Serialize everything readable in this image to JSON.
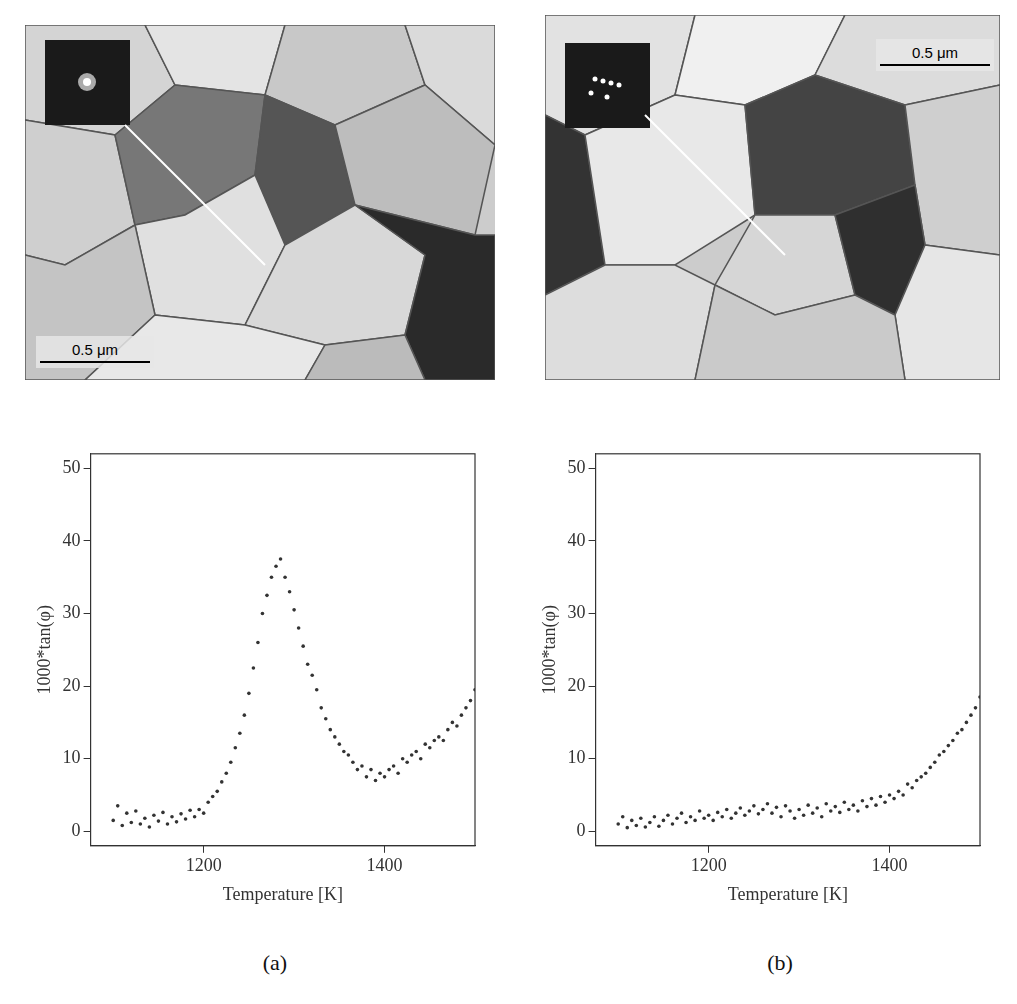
{
  "chart_data": [
    {
      "type": "scatter",
      "x_label": "Temperature [K]",
      "y_label": "1000*tan(φ)",
      "xlim": [
        1075,
        1500
      ],
      "xticks": [
        1200,
        1400
      ],
      "ylim": [
        -2,
        52
      ],
      "yticks": [
        0,
        10,
        20,
        30,
        40,
        50
      ],
      "grid": false,
      "color": "#333333",
      "marker": "circle",
      "x": [
        1100,
        1105,
        1110,
        1115,
        1120,
        1125,
        1130,
        1135,
        1140,
        1145,
        1150,
        1155,
        1160,
        1165,
        1170,
        1175,
        1180,
        1185,
        1190,
        1195,
        1200,
        1205,
        1210,
        1215,
        1220,
        1225,
        1230,
        1235,
        1240,
        1245,
        1250,
        1255,
        1260,
        1265,
        1270,
        1275,
        1280,
        1285,
        1290,
        1295,
        1300,
        1305,
        1310,
        1315,
        1320,
        1325,
        1330,
        1335,
        1340,
        1345,
        1350,
        1355,
        1360,
        1365,
        1370,
        1375,
        1380,
        1385,
        1390,
        1395,
        1400,
        1405,
        1410,
        1415,
        1420,
        1425,
        1430,
        1435,
        1440,
        1445,
        1450,
        1455,
        1460,
        1465,
        1470,
        1475,
        1480,
        1485,
        1490,
        1495,
        1500
      ],
      "values": [
        1.5,
        3.5,
        0.8,
        2.5,
        1.2,
        2.8,
        1.0,
        1.8,
        0.6,
        2.2,
        1.4,
        2.6,
        1.0,
        2.0,
        1.3,
        2.4,
        1.7,
        2.9,
        2.0,
        3.0,
        2.5,
        4.0,
        4.8,
        5.5,
        6.8,
        8.0,
        9.5,
        11.5,
        13.5,
        16.0,
        19.0,
        22.5,
        26.0,
        30.0,
        32.5,
        35.0,
        36.5,
        37.5,
        35.0,
        33.0,
        30.5,
        28.0,
        25.5,
        23.0,
        21.5,
        19.5,
        17.0,
        15.5,
        14.0,
        13.0,
        12.0,
        11.0,
        10.5,
        9.5,
        8.5,
        9.0,
        7.5,
        8.5,
        7.0,
        8.0,
        7.5,
        8.5,
        9.0,
        8.0,
        10.0,
        9.5,
        10.5,
        11.0,
        10.0,
        12.0,
        11.5,
        12.5,
        13.0,
        12.5,
        14.0,
        15.0,
        14.5,
        16.0,
        17.0,
        18.0,
        19.5
      ]
    },
    {
      "type": "scatter",
      "x_label": "Temperature [K]",
      "y_label": "1000*tan(φ)",
      "xlim": [
        1075,
        1500
      ],
      "xticks": [
        1200,
        1400
      ],
      "ylim": [
        -2,
        52
      ],
      "yticks": [
        0,
        10,
        20,
        30,
        40,
        50
      ],
      "grid": false,
      "color": "#333333",
      "marker": "circle",
      "x": [
        1100,
        1105,
        1110,
        1115,
        1120,
        1125,
        1130,
        1135,
        1140,
        1145,
        1150,
        1155,
        1160,
        1165,
        1170,
        1175,
        1180,
        1185,
        1190,
        1195,
        1200,
        1205,
        1210,
        1215,
        1220,
        1225,
        1230,
        1235,
        1240,
        1245,
        1250,
        1255,
        1260,
        1265,
        1270,
        1275,
        1280,
        1285,
        1290,
        1295,
        1300,
        1305,
        1310,
        1315,
        1320,
        1325,
        1330,
        1335,
        1340,
        1345,
        1350,
        1355,
        1360,
        1365,
        1370,
        1375,
        1380,
        1385,
        1390,
        1395,
        1400,
        1405,
        1410,
        1415,
        1420,
        1425,
        1430,
        1435,
        1440,
        1445,
        1450,
        1455,
        1460,
        1465,
        1470,
        1475,
        1480,
        1485,
        1490,
        1495,
        1500
      ],
      "values": [
        1.0,
        2.0,
        0.5,
        1.5,
        0.8,
        1.8,
        0.6,
        1.2,
        2.0,
        0.7,
        1.5,
        2.2,
        1.0,
        1.8,
        2.5,
        1.2,
        2.0,
        1.5,
        2.8,
        1.8,
        2.2,
        1.5,
        2.6,
        2.0,
        3.0,
        1.8,
        2.5,
        3.2,
        2.2,
        2.8,
        3.5,
        2.4,
        3.0,
        3.8,
        2.5,
        3.3,
        2.0,
        3.5,
        2.8,
        1.8,
        3.0,
        2.2,
        3.6,
        2.5,
        3.2,
        2.0,
        3.8,
        2.8,
        3.4,
        2.6,
        4.0,
        3.0,
        3.6,
        2.8,
        4.2,
        3.4,
        4.5,
        3.6,
        4.8,
        4.0,
        5.0,
        4.5,
        5.5,
        5.0,
        6.5,
        6.0,
        7.0,
        7.5,
        8.0,
        8.8,
        9.5,
        10.5,
        11.0,
        11.8,
        12.5,
        13.5,
        14.0,
        15.0,
        16.0,
        17.0,
        18.5
      ]
    }
  ],
  "micrographs": [
    {
      "scale_bar": "0.5 μm"
    },
    {
      "scale_bar": "0.5 μm"
    }
  ],
  "panels": [
    "(a)",
    "(b)"
  ]
}
